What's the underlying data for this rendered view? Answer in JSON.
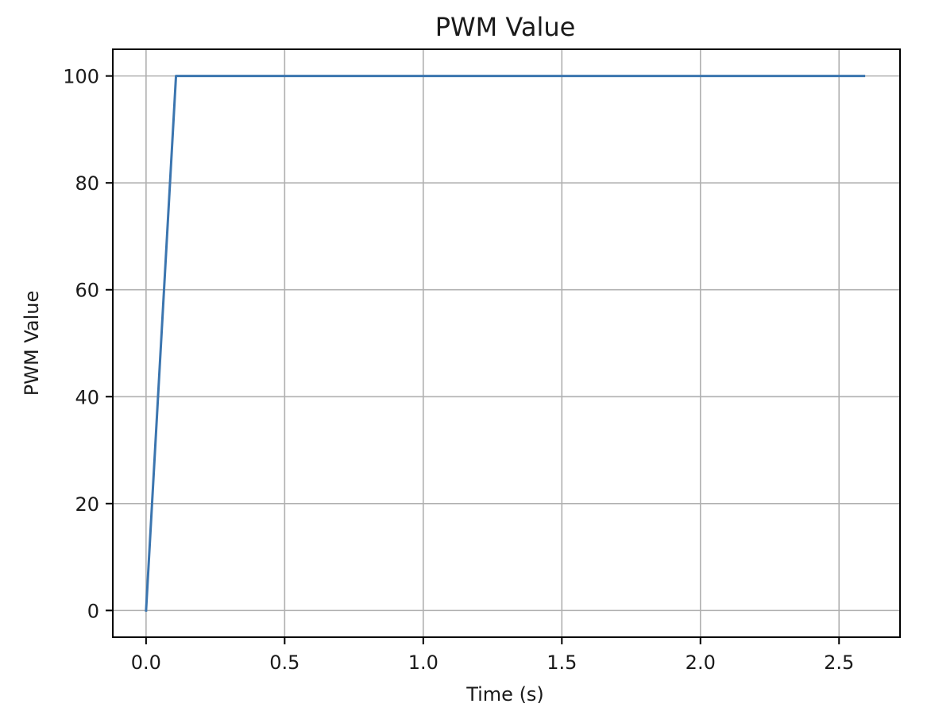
{
  "chart_data": {
    "type": "line",
    "title": "PWM Value",
    "xlabel": "Time (s)",
    "ylabel": "PWM Value",
    "xlim": [
      -0.12,
      2.72
    ],
    "ylim": [
      -5,
      105
    ],
    "x_ticks": [
      0.0,
      0.5,
      1.0,
      1.5,
      2.0,
      2.5
    ],
    "x_tick_labels": [
      "0.0",
      "0.5",
      "1.0",
      "1.5",
      "2.0",
      "2.5"
    ],
    "y_ticks": [
      0,
      20,
      40,
      60,
      80,
      100
    ],
    "y_tick_labels": [
      "0",
      "20",
      "40",
      "60",
      "80",
      "100"
    ],
    "grid": true,
    "series": [
      {
        "color": "#3b75af",
        "x": [
          0.0,
          0.108,
          2.59
        ],
        "y": [
          0,
          100,
          100
        ]
      }
    ]
  }
}
